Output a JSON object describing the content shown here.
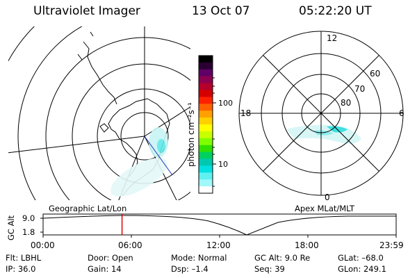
{
  "header": {
    "instrument": "Ultraviolet Imager",
    "date": "13 Oct 07",
    "time": "05:22:20 UT"
  },
  "colorbar": {
    "unit_label": "photon cm⁻²s⁻¹",
    "ticks": [
      "100",
      "10"
    ],
    "colors": [
      "#000000",
      "#2a0033",
      "#600066",
      "#8c0050",
      "#b4002a",
      "#d40000",
      "#ff2000",
      "#ff6000",
      "#ffa000",
      "#ffd000",
      "#ffff00",
      "#c8ff00",
      "#80ff00",
      "#30e000",
      "#00d060",
      "#00c8b0",
      "#00e0e0",
      "#60f0f0",
      "#a0f8f8",
      "#ffffff"
    ]
  },
  "left_map": {
    "label": "Geographic Lat/Lon"
  },
  "right_map": {
    "label": "Apex MLat/MLT",
    "mlt_labels": {
      "top": "12",
      "left": "18",
      "right": "6",
      "bottom": "0"
    },
    "lat_labels": [
      "60",
      "70",
      "80"
    ]
  },
  "timeline": {
    "ylabel": "GC Alt",
    "y_ticks": [
      "9.0",
      "1.8"
    ],
    "x_ticks": [
      "00:00",
      "06:00",
      "12:00",
      "18:00",
      "23:59"
    ],
    "marker_time": "05:22"
  },
  "status": {
    "row1": [
      {
        "label": "Flt: LBHL"
      },
      {
        "label": "Door: Open"
      },
      {
        "label": "Mode: Normal"
      },
      {
        "label": "GC Alt: 9.0 Re"
      },
      {
        "label": "GLat: –68.0"
      }
    ],
    "row2": [
      {
        "label": "IP: 36.0"
      },
      {
        "label": "Gain: 14"
      },
      {
        "label": "Dsp:   –1.4"
      },
      {
        "label": "Seq: 39"
      },
      {
        "label": "GLon: 249.1"
      }
    ]
  }
}
